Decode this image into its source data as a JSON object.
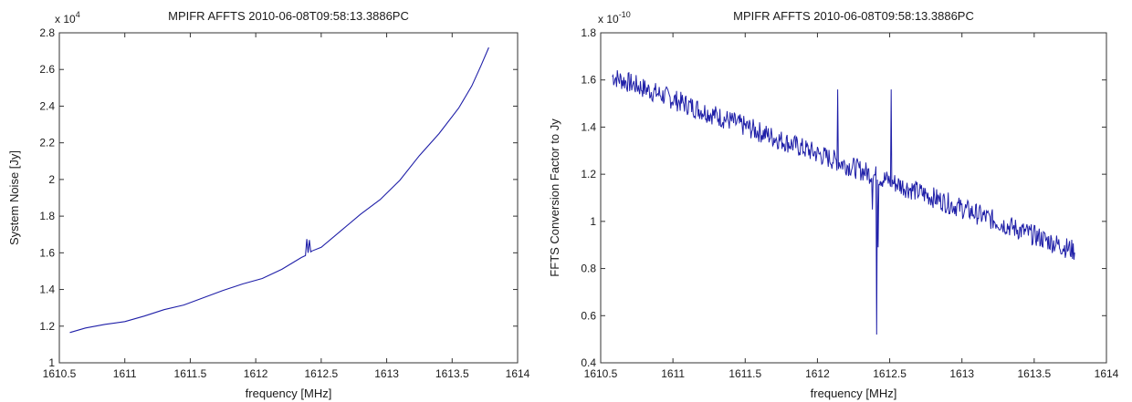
{
  "chart_data": [
    {
      "type": "line",
      "title": "MPIFR AFFTS 2010-06-08T09:58:13.3886PC",
      "xlabel": "frequency [MHz]",
      "ylabel": "System Noise [Jy]",
      "exponent_label": "x 10",
      "exponent_power": "4",
      "xlim": [
        1610.5,
        1614
      ],
      "ylim": [
        1,
        2.8
      ],
      "xticks": [
        "1610.5",
        "1611",
        "1611.5",
        "1612",
        "1612.5",
        "1613",
        "1613.5",
        "1614"
      ],
      "yticks": [
        "1",
        "1.2",
        "1.4",
        "1.6",
        "1.8",
        "2",
        "2.2",
        "2.4",
        "2.6",
        "2.8"
      ],
      "grid": false,
      "line_color": "#1f1fa8",
      "series": [
        {
          "x": [
            1610.58,
            1610.7,
            1610.85,
            1611.0,
            1611.15,
            1611.3,
            1611.45,
            1611.6,
            1611.75,
            1611.9,
            1612.05,
            1612.2,
            1612.35,
            1612.38,
            1612.39,
            1612.4,
            1612.41,
            1612.42,
            1612.43,
            1612.5,
            1612.65,
            1612.8,
            1612.95,
            1613.1,
            1613.25,
            1613.4,
            1613.55,
            1613.65,
            1613.72,
            1613.78
          ],
          "y": [
            1.165,
            1.19,
            1.21,
            1.225,
            1.255,
            1.29,
            1.315,
            1.355,
            1.395,
            1.43,
            1.46,
            1.51,
            1.575,
            1.585,
            1.675,
            1.6,
            1.67,
            1.605,
            1.61,
            1.63,
            1.72,
            1.81,
            1.89,
            1.995,
            2.13,
            2.25,
            2.39,
            2.51,
            2.62,
            2.72
          ]
        }
      ]
    },
    {
      "type": "line",
      "title": "MPIFR AFFTS 2010-06-08T09:58:13.3886PC",
      "xlabel": "frequency [MHz]",
      "ylabel": "FFTS Conversion Factor to Jy",
      "exponent_label": "x 10",
      "exponent_power": "-10",
      "xlim": [
        1610.5,
        1614
      ],
      "ylim": [
        0.4,
        1.8
      ],
      "xticks": [
        "1610.5",
        "1611",
        "1611.5",
        "1612",
        "1612.5",
        "1613",
        "1613.5",
        "1614"
      ],
      "yticks": [
        "0.4",
        "0.6",
        "0.8",
        "1",
        "1.2",
        "1.4",
        "1.6",
        "1.8"
      ],
      "grid": false,
      "line_color": "#1f1fa8",
      "trend": {
        "x": [
          1610.58,
          1613.78
        ],
        "y": [
          1.615,
          0.875
        ]
      },
      "noise_amplitude": 0.045,
      "spikes": [
        {
          "x": 1612.14,
          "y": 1.56
        },
        {
          "x": 1612.38,
          "y": 1.05
        },
        {
          "x": 1612.41,
          "y": 0.52
        },
        {
          "x": 1612.42,
          "y": 0.89
        },
        {
          "x": 1612.51,
          "y": 1.56
        }
      ]
    }
  ]
}
